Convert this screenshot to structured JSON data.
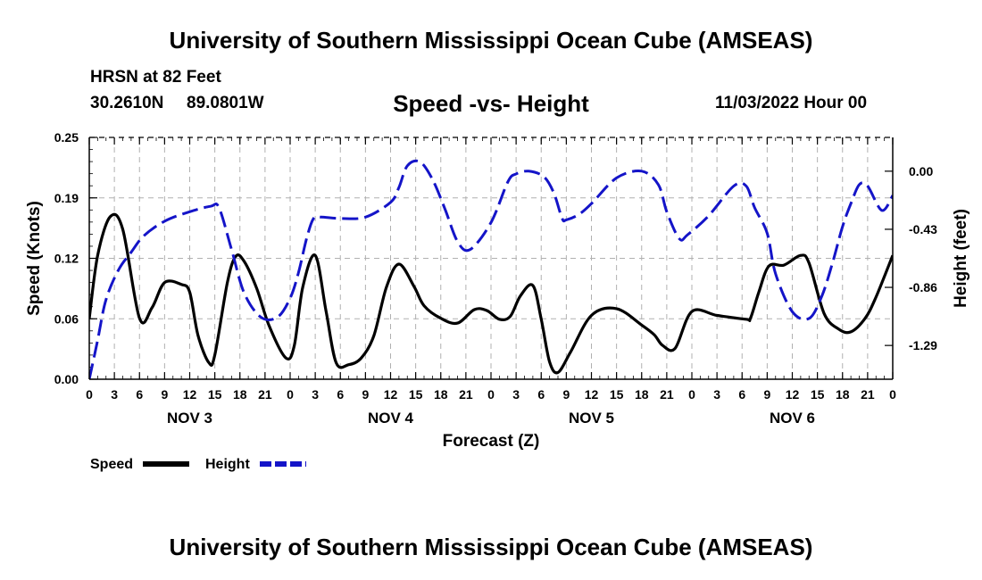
{
  "page": {
    "title_top": "University of Southern Mississippi Ocean Cube (AMSEAS)",
    "title_bottom": "University of Southern Mississippi Ocean Cube (AMSEAS)",
    "station": "HRSN at 82 Feet",
    "latitude": "30.2610N",
    "longitude": "89.0801W",
    "run": "11/03/2022 Hour 00"
  },
  "chart_data": {
    "type": "line",
    "title": "Speed -vs- Height",
    "xlabel": "Forecast (Z)",
    "ylabel": "Speed (Knots)",
    "y2label": "Height (feet)",
    "ylim": [
      0,
      0.25
    ],
    "y2lim": [
      -1.54,
      0.25
    ],
    "yticks": [
      "0.00",
      "0.06",
      "0.12",
      "0.19",
      "0.25"
    ],
    "ytick_values": [
      0,
      0.0625,
      0.125,
      0.1875,
      0.25
    ],
    "y2ticks": [
      "0.00",
      "-0.43",
      "-0.86",
      "-1.29"
    ],
    "y2tick_values": [
      0,
      -0.43,
      -0.86,
      -1.29
    ],
    "xlim": [
      0,
      96
    ],
    "xticks": [
      "0",
      "3",
      "6",
      "9",
      "12",
      "15",
      "18",
      "21",
      "0",
      "3",
      "6",
      "9",
      "12",
      "15",
      "18",
      "21",
      "0",
      "3",
      "6",
      "9",
      "12",
      "15",
      "18",
      "21",
      "0",
      "3",
      "6",
      "9",
      "12",
      "15",
      "18",
      "21",
      "0"
    ],
    "days": [
      {
        "label": "NOV 3",
        "hour": 12
      },
      {
        "label": "NOV 4",
        "hour": 36
      },
      {
        "label": "NOV 5",
        "hour": 60
      },
      {
        "label": "NOV 6",
        "hour": 84
      }
    ],
    "legend": {
      "speed": "Speed",
      "height": "Height"
    },
    "colors": {
      "speed": "#000000",
      "height": "#1414c8",
      "grid": "#b0b0b0"
    },
    "series": [
      {
        "name": "Speed",
        "axis": "left",
        "x": [
          0,
          1,
          2.5,
          4,
          6,
          7.5,
          9,
          11,
          12,
          13,
          14.3,
          15,
          16.5,
          17.5,
          18.5,
          20,
          21.5,
          23.5,
          24.5,
          25.5,
          27,
          28.3,
          29.5,
          31,
          32.5,
          34,
          35.5,
          37,
          38.8,
          40,
          42,
          44,
          46,
          47.5,
          49,
          50.3,
          51.5,
          53,
          54,
          55,
          56,
          57.5,
          60,
          63,
          66,
          67.5,
          68.5,
          70,
          72,
          75,
          78.5,
          79,
          80,
          81.2,
          83,
          85,
          86,
          87.8,
          89.5,
          91,
          92.7,
          94,
          96
        ],
        "values": [
          0.063,
          0.128,
          0.168,
          0.155,
          0.063,
          0.074,
          0.1,
          0.098,
          0.09,
          0.045,
          0.017,
          0.025,
          0.1,
          0.127,
          0.122,
          0.094,
          0.055,
          0.022,
          0.035,
          0.095,
          0.128,
          0.07,
          0.017,
          0.015,
          0.022,
          0.045,
          0.095,
          0.119,
          0.096,
          0.076,
          0.063,
          0.058,
          0.072,
          0.071,
          0.062,
          0.065,
          0.086,
          0.097,
          0.062,
          0.018,
          0.007,
          0.028,
          0.066,
          0.073,
          0.056,
          0.046,
          0.035,
          0.032,
          0.07,
          0.066,
          0.062,
          0.063,
          0.09,
          0.117,
          0.118,
          0.128,
          0.12,
          0.068,
          0.052,
          0.049,
          0.063,
          0.085,
          0.128
        ]
      },
      {
        "name": "Height",
        "axis": "right",
        "x": [
          0,
          1,
          2,
          3.5,
          5,
          6.5,
          9,
          12,
          14.5,
          15.5,
          17,
          18.5,
          20.5,
          22.5,
          24,
          25,
          26,
          26.8,
          27.7,
          30,
          33,
          36,
          37,
          38,
          39.5,
          41,
          42.5,
          44,
          45.5,
          48,
          50,
          51,
          52.5,
          54.3,
          55.5,
          56.5,
          57,
          58.5,
          60,
          63,
          66,
          68,
          69,
          70.5,
          71.5,
          74,
          77,
          78.5,
          79.5,
          81,
          82,
          84,
          86,
          87.5,
          88.8,
          90,
          91,
          92,
          93,
          94.7,
          96
        ],
        "values": [
          -1.54,
          -1.25,
          -0.95,
          -0.73,
          -0.6,
          -0.48,
          -0.37,
          -0.3,
          -0.26,
          -0.27,
          -0.58,
          -0.9,
          -1.08,
          -1.08,
          -0.94,
          -0.75,
          -0.49,
          -0.35,
          -0.34,
          -0.35,
          -0.34,
          -0.23,
          -0.12,
          0.04,
          0.07,
          -0.06,
          -0.28,
          -0.52,
          -0.58,
          -0.38,
          -0.08,
          -0.02,
          0.0,
          -0.04,
          -0.16,
          -0.35,
          -0.36,
          -0.32,
          -0.24,
          -0.05,
          0.0,
          -0.1,
          -0.3,
          -0.5,
          -0.47,
          -0.33,
          -0.11,
          -0.11,
          -0.27,
          -0.46,
          -0.76,
          -1.04,
          -1.09,
          -0.93,
          -0.68,
          -0.41,
          -0.24,
          -0.1,
          -0.11,
          -0.29,
          -0.18
        ]
      }
    ]
  }
}
